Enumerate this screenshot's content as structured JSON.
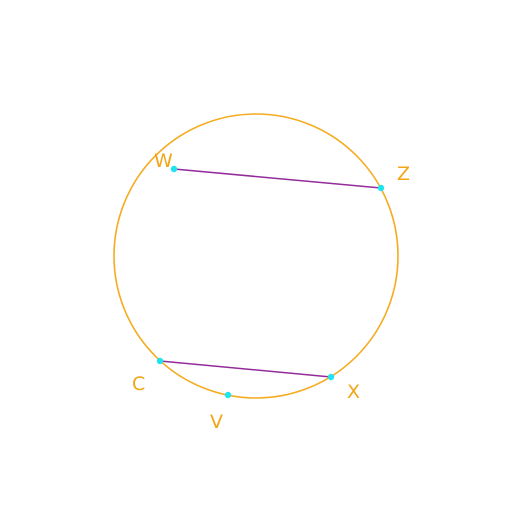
{
  "diagram": {
    "circle_color": "#f5ab1f",
    "chord_color": "#932b9b",
    "point_color": "#1ee4f0",
    "label_color": "#f2a516",
    "points": [
      {
        "id": "W",
        "label": "W"
      },
      {
        "id": "Z",
        "label": "Z"
      },
      {
        "id": "C",
        "label": "C"
      },
      {
        "id": "X",
        "label": "X"
      },
      {
        "id": "V",
        "label": "V"
      }
    ],
    "chords": [
      {
        "from": "W",
        "to": "Z"
      },
      {
        "from": "C",
        "to": "X"
      }
    ]
  }
}
